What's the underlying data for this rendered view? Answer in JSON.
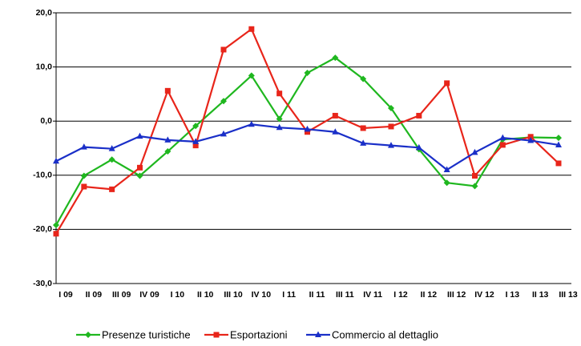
{
  "chart_data": {
    "type": "line",
    "categories": [
      "I 09",
      "II 09",
      "III 09",
      "IV 09",
      "I 10",
      "II 10",
      "III 10",
      "IV 10",
      "I 11",
      "II 11",
      "III 11",
      "IV 11",
      "I 12",
      "II 12",
      "III 12",
      "IV 12",
      "I 13",
      "II 13",
      "III 13"
    ],
    "series": [
      {
        "name": "Presenze turistiche",
        "color": "#1fb71f",
        "marker": "diamond",
        "values": [
          -19.2,
          -10.1,
          -7.1,
          -10.1,
          -5.6,
          -0.9,
          3.7,
          8.4,
          0.4,
          8.9,
          11.7,
          7.8,
          2.4,
          -5.2,
          -11.4,
          -12.0,
          -3.4,
          -3.0,
          -3.1
        ]
      },
      {
        "name": "Esportazioni",
        "color": "#e8251a",
        "marker": "square",
        "values": [
          -20.8,
          -12.1,
          -12.6,
          -8.6,
          5.6,
          -4.5,
          13.2,
          17.0,
          5.1,
          -2.0,
          1.0,
          -1.3,
          -1.0,
          1.0,
          7.0,
          -10.1,
          -4.4,
          -2.9,
          -7.8
        ]
      },
      {
        "name": "Commercio al dettaglio",
        "color": "#1a2fc8",
        "marker": "triangle",
        "values": [
          -7.4,
          -4.8,
          -5.1,
          -2.8,
          -3.5,
          -3.8,
          -2.4,
          -0.6,
          -1.2,
          -1.5,
          -2.0,
          -4.1,
          -4.5,
          -4.9,
          -9.0,
          -5.8,
          -3.1,
          -3.6,
          -4.4
        ]
      }
    ],
    "ylim": [
      -30,
      20
    ],
    "yticks": [
      {
        "value": -30,
        "label": "-30,0"
      },
      {
        "value": -20,
        "label": "-20,0"
      },
      {
        "value": -10,
        "label": "-10,0"
      },
      {
        "value": 0,
        "label": "0,0"
      },
      {
        "value": 10,
        "label": "10,0"
      },
      {
        "value": 20,
        "label": "20,0"
      }
    ],
    "grid": true,
    "legend": "bottom"
  }
}
